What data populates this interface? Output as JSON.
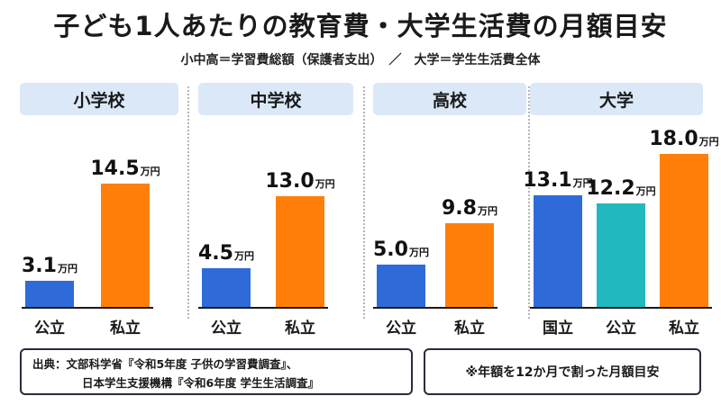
{
  "title": "子ども1人あたりの教育費・大学生活費の月額目安",
  "subtitle": "小中高＝学習費総額（保護者支出）　／　大学＝学生生活費全体",
  "unit": "万円",
  "colors": {
    "public": "#2e6bd8",
    "private": "#ff7f0a",
    "kokuritsu": "#2e6bd8",
    "daigaku_public": "#22b8c0"
  },
  "chart_data": {
    "type": "bar",
    "title": "子ども1人あたりの教育費・大学生活費の月額目安",
    "unit": "万円",
    "groups": [
      {
        "label": "小学校",
        "categories": [
          "公立",
          "私立"
        ],
        "values": [
          3.1,
          14.5
        ]
      },
      {
        "label": "中学校",
        "categories": [
          "公立",
          "私立"
        ],
        "values": [
          4.5,
          13.0
        ]
      },
      {
        "label": "高校",
        "categories": [
          "公立",
          "私立"
        ],
        "values": [
          5.0,
          9.8
        ]
      },
      {
        "label": "大学",
        "categories": [
          "国立",
          "公立",
          "私立"
        ],
        "values": [
          13.1,
          12.2,
          18.0
        ]
      }
    ]
  },
  "source": {
    "line1": "出典：文部科学省『令和5年度 子供の学習費調査』、",
    "line2": "日本学生支援機構『令和6年度 学生生活調査』"
  },
  "note": "※年額を12か月で割った月額目安"
}
